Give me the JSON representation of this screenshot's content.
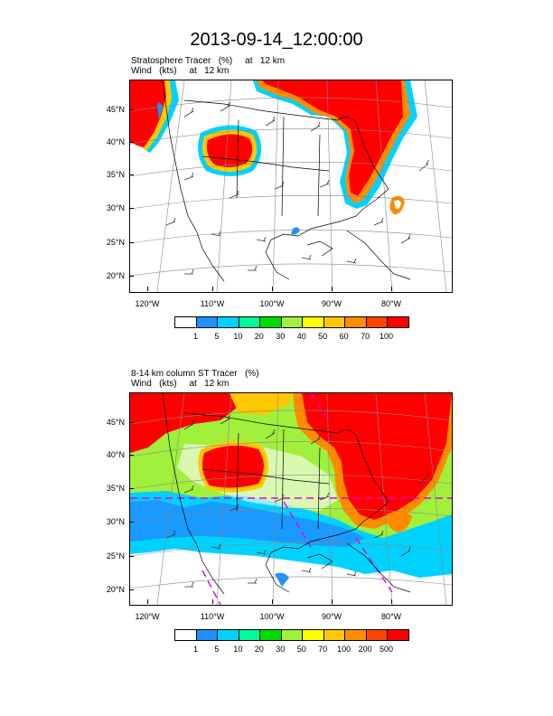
{
  "title": "2013-09-14_12:00:00",
  "panels": [
    {
      "id": "top",
      "line1": "Stratosphere Tracer   (%)     at   12 km",
      "line2": "Wind   (kts)     at   12 km",
      "lat_labels": [
        "45°N",
        "40°N",
        "35°N",
        "30°N",
        "25°N",
        "20°N"
      ],
      "lon_labels": [
        "120°W",
        "110°W",
        "100°W",
        "90°W",
        "80°W"
      ],
      "colorbar": {
        "labels": [
          "1",
          "5",
          "10",
          "20",
          "30",
          "40",
          "50",
          "60",
          "70",
          "100"
        ],
        "colors": [
          "#ffffff",
          "#1e90ff",
          "#00d2ff",
          "#00ff96",
          "#00dc00",
          "#a0f03c",
          "#ffff00",
          "#ffc800",
          "#ff8c00",
          "#ff4600",
          "#ff0000"
        ]
      }
    },
    {
      "id": "bottom",
      "line1": "8-14 km column ST Tracer   (%)",
      "line2": "Wind   (kts)     at   12 km",
      "lat_labels": [
        "45°N",
        "40°N",
        "35°N",
        "30°N",
        "25°N",
        "20°N"
      ],
      "lon_labels": [
        "120°W",
        "110°W",
        "100°W",
        "90°W",
        "80°W"
      ],
      "colorbar": {
        "labels": [
          "1",
          "5",
          "10",
          "20",
          "30",
          "50",
          "70",
          "100",
          "200",
          "500"
        ],
        "colors": [
          "#ffffff",
          "#1e90ff",
          "#00d2ff",
          "#00ff96",
          "#00dc00",
          "#a0f03c",
          "#ffff00",
          "#ffc800",
          "#ff8c00",
          "#ff4600",
          "#ff0000"
        ]
      }
    }
  ]
}
